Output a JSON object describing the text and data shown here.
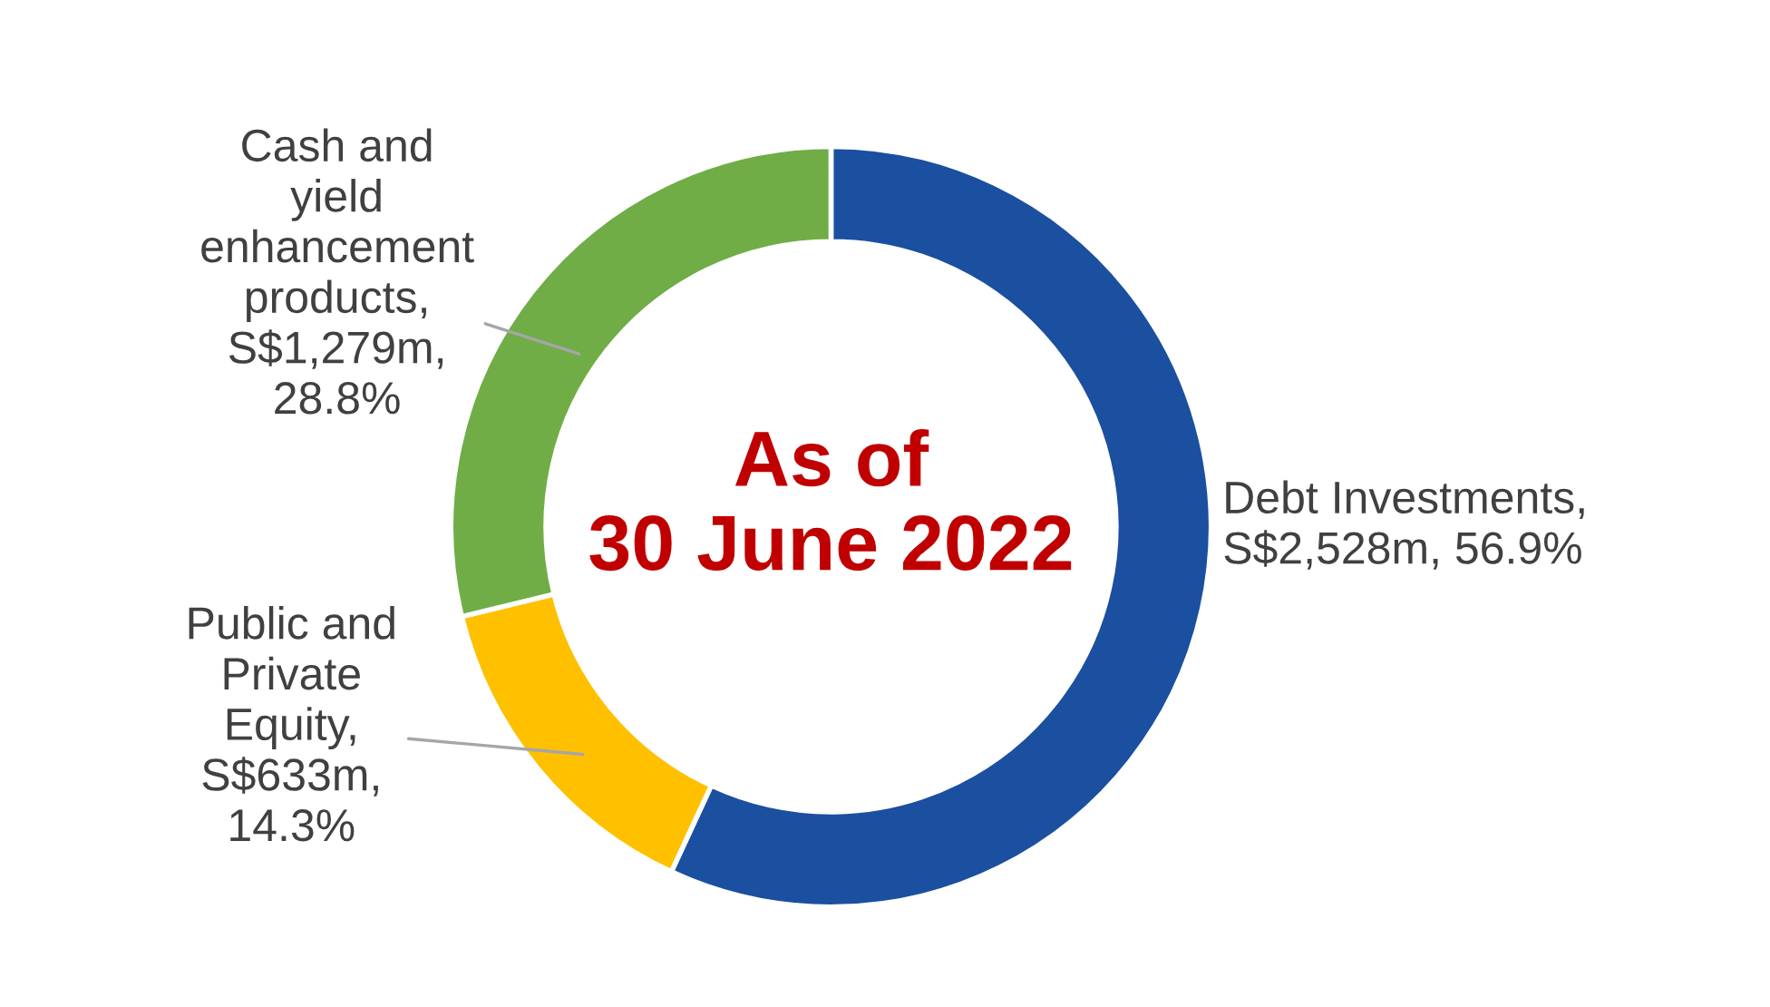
{
  "chart_data": {
    "type": "donut",
    "categories": [
      "Debt Investments,\nS$2,528m, 56.9%",
      "Public and\nPrivate\nEquity,\nS$633m,\n14.3%",
      "Cash and\nyield\nenhancement\nproducts,\nS$1,279m,\n28.8%"
    ],
    "values": [
      56.9,
      14.3,
      28.8
    ],
    "colors": [
      "#1b4f9f",
      "#ffc000",
      "#70ad47"
    ],
    "annotations": [
      "As of\n30 June 2022"
    ]
  }
}
